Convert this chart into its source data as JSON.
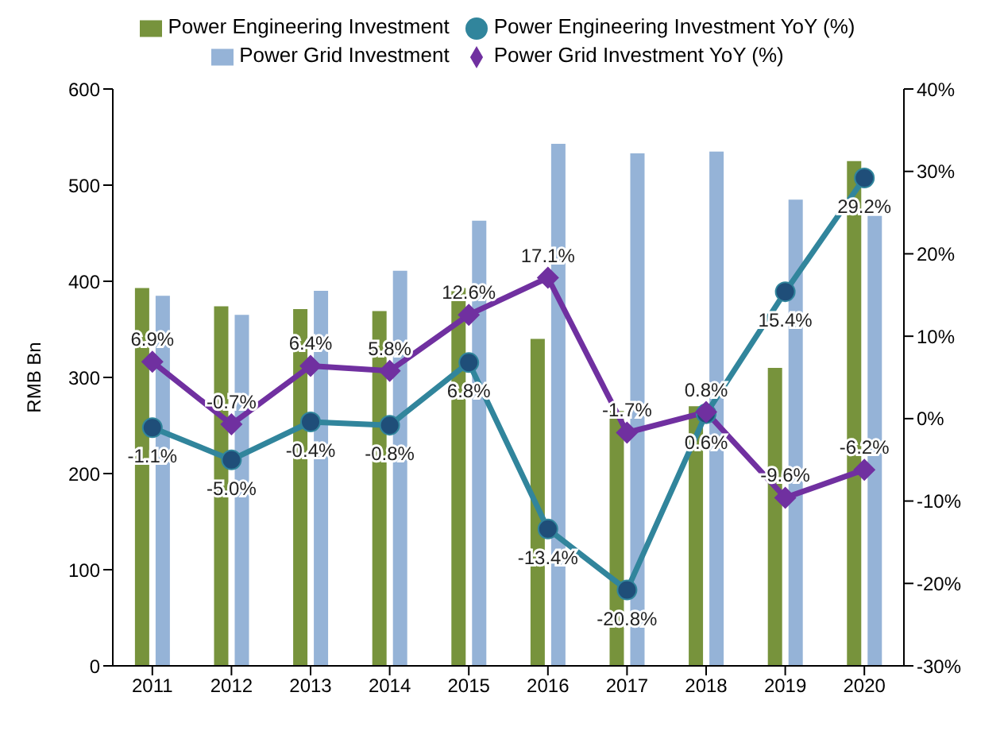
{
  "chart_data": {
    "type": "bar",
    "ylabel": "RMB Bn",
    "categories": [
      "2011",
      "2012",
      "2013",
      "2014",
      "2015",
      "2016",
      "2017",
      "2018",
      "2019",
      "2020"
    ],
    "series": [
      {
        "name": "Power Engineering Investment",
        "color": "#77933c",
        "values": [
          393,
          374,
          371,
          369,
          393,
          340,
          265,
          270,
          310,
          525
        ]
      },
      {
        "name": "Power Grid Investment",
        "color": "#95b3d7",
        "values": [
          385,
          365,
          390,
          411,
          463,
          543,
          533,
          535,
          485,
          468
        ]
      },
      {
        "name": "Power Engineering Investment YoY (%)",
        "type": "line",
        "axis": "y2",
        "color": "#31859c",
        "marker": "circle",
        "values": [
          -1.1,
          -5.0,
          -0.4,
          -0.8,
          6.8,
          -13.4,
          -20.8,
          0.6,
          15.4,
          29.2
        ],
        "value_labels": [
          "-1.1%",
          "-5.0%",
          "-0.4%",
          "-0.8%",
          "6.8%",
          "-13.4%",
          "-20.8%",
          "0.6%",
          "15.4%",
          "29.2%"
        ]
      },
      {
        "name": "Power Grid Investment YoY (%)",
        "type": "line",
        "axis": "y2",
        "color": "#7030a0",
        "marker": "diamond",
        "values": [
          6.9,
          -0.7,
          6.4,
          5.8,
          12.6,
          17.1,
          -1.7,
          0.8,
          -9.6,
          -6.2
        ],
        "value_labels": [
          "6.9%",
          "-0.7%",
          "6.4%",
          "5.8%",
          "12.6%",
          "17.1%",
          "-1.7%",
          "0.8%",
          "-9.6%",
          "-6.2%"
        ]
      }
    ],
    "ylim": [
      0,
      600
    ],
    "yticks": [
      0,
      100,
      200,
      300,
      400,
      500,
      600
    ],
    "y2lim": [
      -30,
      40
    ],
    "y2ticks": [
      {
        "value": -30,
        "label": "-30%"
      },
      {
        "value": -20,
        "label": "-20%"
      },
      {
        "value": -10,
        "label": "-10%"
      },
      {
        "value": 0,
        "label": "0%"
      },
      {
        "value": 10,
        "label": "10%"
      },
      {
        "value": 20,
        "label": "20%"
      },
      {
        "value": 30,
        "label": "30%"
      },
      {
        "value": 40,
        "label": "40%"
      }
    ],
    "grid": false,
    "legend": "top"
  }
}
